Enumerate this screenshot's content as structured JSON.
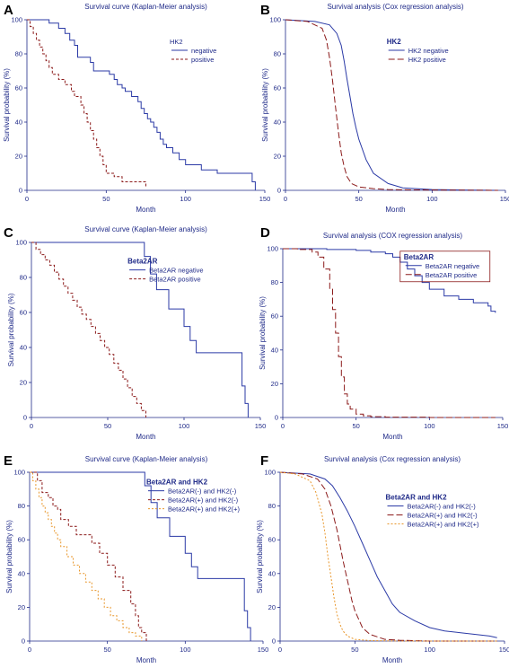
{
  "colors": {
    "axis": "#1f2a88",
    "text": "#1f2a88",
    "blue": "#2b3aa6",
    "red": "#8b1a1a",
    "orange": "#e8962a"
  },
  "chart_data": [
    {
      "id": "A",
      "label": "A",
      "type": "line",
      "title": "Survival curve (Kaplan-Meier analysis)",
      "xlabel": "Month",
      "ylabel": "Survival probability (%)",
      "xlim": [
        0,
        150
      ],
      "ylim": [
        0,
        100
      ],
      "xticks": [
        0,
        50,
        100,
        150
      ],
      "yticks": [
        0,
        20,
        40,
        60,
        80,
        100
      ],
      "step": true,
      "legend_title": "HK2",
      "legend_bold": false,
      "legend_box": false,
      "series": [
        {
          "name": "negative",
          "color": "blue",
          "dash": "",
          "x": [
            0,
            14,
            20,
            24,
            27,
            30,
            32,
            40,
            42,
            52,
            55,
            57,
            60,
            62,
            66,
            70,
            72,
            74,
            76,
            78,
            80,
            82,
            84,
            86,
            88,
            92,
            96,
            100,
            105,
            110,
            120,
            140,
            142,
            144
          ],
          "y": [
            100,
            98,
            95,
            92,
            88,
            85,
            78,
            75,
            70,
            68,
            65,
            62,
            60,
            58,
            55,
            52,
            48,
            45,
            42,
            40,
            37,
            34,
            30,
            27,
            25,
            22,
            18,
            15,
            15,
            12,
            10,
            10,
            5,
            0
          ]
        },
        {
          "name": "positive",
          "color": "red",
          "dash": "3,2",
          "x": [
            0,
            2,
            4,
            6,
            8,
            10,
            12,
            14,
            16,
            20,
            24,
            28,
            30,
            34,
            36,
            38,
            40,
            42,
            44,
            46,
            48,
            50,
            55,
            60,
            65,
            70,
            75
          ],
          "y": [
            100,
            96,
            92,
            88,
            84,
            80,
            76,
            72,
            68,
            65,
            62,
            58,
            55,
            50,
            45,
            40,
            35,
            30,
            25,
            20,
            15,
            10,
            8,
            5,
            5,
            5,
            2
          ]
        }
      ]
    },
    {
      "id": "B",
      "label": "B",
      "type": "line",
      "title": "Survival analysis (Cox regression analysis)",
      "xlabel": "Month",
      "ylabel": "Survival probability (%)",
      "xlim": [
        0,
        150
      ],
      "ylim": [
        0,
        100
      ],
      "xticks": [
        0,
        50,
        100,
        150
      ],
      "yticks": [
        0,
        20,
        40,
        60,
        80,
        100
      ],
      "step": false,
      "legend_title": "HK2",
      "legend_bold": true,
      "legend_box": false,
      "series": [
        {
          "name": "HK2 negative",
          "color": "blue",
          "dash": "",
          "x": [
            0,
            20,
            30,
            35,
            38,
            40,
            42,
            44,
            46,
            48,
            50,
            55,
            60,
            70,
            80,
            100,
            120,
            145
          ],
          "y": [
            100,
            99,
            97,
            92,
            85,
            76,
            65,
            55,
            45,
            37,
            30,
            18,
            10,
            4,
            1.5,
            0.5,
            0.2,
            0
          ]
        },
        {
          "name": "HK2 positive",
          "color": "red",
          "dash": "7,3",
          "x": [
            0,
            15,
            25,
            28,
            30,
            32,
            34,
            36,
            38,
            40,
            42,
            45,
            50,
            60,
            70,
            80,
            100,
            145
          ],
          "y": [
            100,
            99,
            95,
            88,
            78,
            65,
            50,
            35,
            22,
            14,
            8,
            4,
            2,
            1,
            0.5,
            0.3,
            0.2,
            0
          ]
        }
      ]
    },
    {
      "id": "C",
      "label": "C",
      "type": "line",
      "title": "Survival curve (Kaplan-Meier analysis)",
      "xlabel": "Month",
      "ylabel": "Survival probability (%)",
      "xlim": [
        0,
        150
      ],
      "ylim": [
        0,
        100
      ],
      "xticks": [
        0,
        50,
        100,
        150
      ],
      "yticks": [
        0,
        20,
        40,
        60,
        80,
        100
      ],
      "step": true,
      "legend_title": "Beta2AR",
      "legend_bold": true,
      "legend_box": false,
      "series": [
        {
          "name": "Beta2AR negative",
          "color": "blue",
          "dash": "",
          "x": [
            0,
            72,
            74,
            78,
            82,
            90,
            100,
            104,
            108,
            120,
            138,
            140,
            142
          ],
          "y": [
            100,
            100,
            92,
            82,
            73,
            62,
            52,
            44,
            37,
            37,
            18,
            8,
            0
          ]
        },
        {
          "name": "Beta2AR positive",
          "color": "red",
          "dash": "3,2",
          "x": [
            0,
            3,
            6,
            9,
            12,
            15,
            18,
            21,
            24,
            27,
            30,
            33,
            36,
            39,
            42,
            45,
            48,
            51,
            54,
            57,
            60,
            63,
            66,
            69,
            72,
            75
          ],
          "y": [
            100,
            96,
            93,
            90,
            87,
            83,
            79,
            75,
            71,
            67,
            63,
            59,
            56,
            52,
            48,
            44,
            40,
            36,
            31,
            27,
            22,
            17,
            12,
            8,
            4,
            0
          ]
        }
      ]
    },
    {
      "id": "D",
      "label": "D",
      "type": "line",
      "title": "Survival analysis (COX regression analysis)",
      "xlabel": "Month",
      "ylabel": "Survival probability (%)",
      "xlim": [
        0,
        150
      ],
      "ylim": [
        0,
        100
      ],
      "xticks": [
        0,
        50,
        100,
        150
      ],
      "yticks": [
        0,
        20,
        40,
        60,
        80,
        100
      ],
      "step": true,
      "legend_title": "Beta2AR",
      "legend_bold": true,
      "legend_box": true,
      "series": [
        {
          "name": "Beta2AR negative",
          "color": "blue",
          "dash": "",
          "x": [
            0,
            30,
            50,
            60,
            70,
            75,
            80,
            85,
            90,
            95,
            100,
            110,
            120,
            130,
            140,
            142,
            145
          ],
          "y": [
            100,
            99.5,
            99,
            98,
            97,
            95,
            92,
            88,
            84,
            80,
            76,
            72,
            70,
            68,
            66,
            63,
            62
          ]
        },
        {
          "name": "Beta2AR positive",
          "color": "red",
          "dash": "7,3",
          "x": [
            0,
            10,
            20,
            24,
            28,
            32,
            34,
            36,
            38,
            40,
            42,
            44,
            46,
            50,
            55,
            60,
            70,
            100,
            145
          ],
          "y": [
            100,
            99.5,
            98,
            95,
            88,
            76,
            64,
            50,
            36,
            24,
            14,
            8,
            5,
            2,
            1,
            0.5,
            0.2,
            0,
            0
          ]
        }
      ]
    },
    {
      "id": "E",
      "label": "E",
      "type": "line",
      "title": "Survival curve (Kaplan-Meier analysis)",
      "xlabel": "Month",
      "ylabel": "Survival probability (%)",
      "xlim": [
        0,
        150
      ],
      "ylim": [
        0,
        100
      ],
      "xticks": [
        0,
        50,
        100,
        150
      ],
      "yticks": [
        0,
        20,
        40,
        60,
        80,
        100
      ],
      "step": true,
      "legend_title": "Beta2AR and HK2",
      "legend_bold": true,
      "legend_box": false,
      "series": [
        {
          "name": "Beta2AR(-) and HK2(-)",
          "color": "blue",
          "dash": "",
          "x": [
            0,
            72,
            74,
            78,
            82,
            90,
            100,
            104,
            108,
            120,
            138,
            140,
            142
          ],
          "y": [
            100,
            100,
            92,
            82,
            73,
            62,
            52,
            44,
            37,
            37,
            18,
            8,
            0
          ]
        },
        {
          "name": "Beta2AR(+) and HK2(-)",
          "color": "red",
          "dash": "3,2",
          "x": [
            0,
            5,
            8,
            12,
            15,
            18,
            20,
            25,
            30,
            35,
            40,
            45,
            50,
            55,
            60,
            65,
            68,
            70,
            72,
            75
          ],
          "y": [
            100,
            95,
            88,
            85,
            80,
            78,
            72,
            68,
            63,
            63,
            58,
            52,
            45,
            38,
            30,
            22,
            15,
            8,
            5,
            0
          ]
        },
        {
          "name": "Beta2AR(+) and HK2(+)",
          "color": "orange",
          "dash": "2,2",
          "x": [
            0,
            2,
            4,
            6,
            8,
            10,
            12,
            14,
            16,
            18,
            20,
            24,
            28,
            32,
            36,
            40,
            44,
            48,
            52,
            56,
            60,
            64,
            68,
            72
          ],
          "y": [
            100,
            95,
            90,
            85,
            80,
            76,
            72,
            68,
            64,
            60,
            56,
            50,
            45,
            40,
            35,
            30,
            25,
            20,
            15,
            12,
            8,
            5,
            3,
            0
          ]
        }
      ]
    },
    {
      "id": "F",
      "label": "F",
      "type": "line",
      "title": "Survival analysis (Cox regression analysis)",
      "xlabel": "Month",
      "ylabel": "Survival probability (%)",
      "xlim": [
        0,
        150
      ],
      "ylim": [
        0,
        100
      ],
      "xticks": [
        0,
        50,
        100,
        150
      ],
      "yticks": [
        0,
        20,
        40,
        60,
        80,
        100
      ],
      "step": false,
      "legend_title": "Beta2AR and HK2",
      "legend_bold": true,
      "legend_box": false,
      "series": [
        {
          "name": "Beta2AR(-) and HK2(-)",
          "color": "blue",
          "dash": "",
          "x": [
            0,
            20,
            30,
            35,
            40,
            45,
            50,
            55,
            60,
            65,
            70,
            75,
            80,
            90,
            100,
            110,
            120,
            130,
            140,
            145
          ],
          "y": [
            100,
            99,
            96,
            92,
            85,
            77,
            68,
            58,
            48,
            38,
            30,
            22,
            17,
            12,
            8,
            6,
            5,
            4,
            3,
            2
          ]
        },
        {
          "name": "Beta2AR(+) and HK2(-)",
          "color": "red",
          "dash": "7,3",
          "x": [
            0,
            15,
            25,
            30,
            34,
            38,
            40,
            42,
            44,
            46,
            48,
            50,
            55,
            60,
            70,
            80,
            100,
            145
          ],
          "y": [
            100,
            99,
            96,
            90,
            80,
            66,
            57,
            48,
            40,
            32,
            24,
            18,
            8,
            4,
            1,
            0.5,
            0,
            0
          ]
        },
        {
          "name": "Beta2AR(+) and HK2(+)",
          "color": "orange",
          "dash": "2,2",
          "x": [
            0,
            10,
            20,
            24,
            28,
            30,
            32,
            34,
            36,
            38,
            40,
            42,
            45,
            50,
            60,
            80,
            145
          ],
          "y": [
            100,
            99,
            95,
            88,
            75,
            64,
            50,
            38,
            26,
            16,
            10,
            6,
            3,
            1,
            0.3,
            0,
            0
          ]
        }
      ]
    }
  ]
}
